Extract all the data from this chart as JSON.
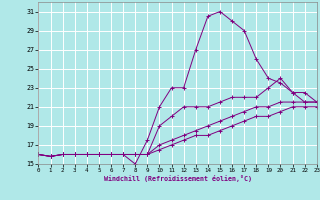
{
  "xlabel": "Windchill (Refroidissement éolien,°C)",
  "background_color": "#b0e8e8",
  "grid_color": "#ffffff",
  "line_color": "#800080",
  "xlim": [
    0,
    23
  ],
  "ylim": [
    15,
    32
  ],
  "yticks": [
    15,
    17,
    19,
    21,
    23,
    25,
    27,
    29,
    31
  ],
  "xticks": [
    0,
    1,
    2,
    3,
    4,
    5,
    6,
    7,
    8,
    9,
    10,
    11,
    12,
    13,
    14,
    15,
    16,
    17,
    18,
    19,
    20,
    21,
    22,
    23
  ],
  "lines": [
    {
      "x": [
        0,
        1,
        2,
        3,
        4,
        5,
        6,
        7,
        8,
        9,
        10,
        11,
        12,
        13,
        14,
        15,
        16,
        17,
        18,
        19,
        20,
        21,
        22,
        23
      ],
      "y": [
        16,
        15.8,
        16,
        16,
        16,
        16,
        16,
        16,
        15,
        17.5,
        21,
        23,
        23,
        27,
        30.5,
        31,
        30,
        29,
        26,
        24,
        23.5,
        22.5,
        21.5,
        21.5
      ]
    },
    {
      "x": [
        0,
        1,
        2,
        3,
        4,
        5,
        6,
        7,
        8,
        9,
        10,
        11,
        12,
        13,
        14,
        15,
        16,
        17,
        18,
        19,
        20,
        21,
        22,
        23
      ],
      "y": [
        16,
        15.8,
        16,
        16,
        16,
        16,
        16,
        16,
        16,
        16,
        19,
        20,
        21,
        21,
        21,
        21.5,
        22,
        22,
        22,
        23,
        24,
        22.5,
        22.5,
        21.5
      ]
    },
    {
      "x": [
        0,
        1,
        2,
        3,
        4,
        5,
        6,
        7,
        8,
        9,
        10,
        11,
        12,
        13,
        14,
        15,
        16,
        17,
        18,
        19,
        20,
        21,
        22,
        23
      ],
      "y": [
        16,
        15.8,
        16,
        16,
        16,
        16,
        16,
        16,
        16,
        16,
        17,
        17.5,
        18,
        18.5,
        19,
        19.5,
        20,
        20.5,
        21,
        21,
        21.5,
        21.5,
        21.5,
        21.5
      ]
    },
    {
      "x": [
        0,
        1,
        2,
        3,
        4,
        5,
        6,
        7,
        8,
        9,
        10,
        11,
        12,
        13,
        14,
        15,
        16,
        17,
        18,
        19,
        20,
        21,
        22,
        23
      ],
      "y": [
        16,
        15.8,
        16,
        16,
        16,
        16,
        16,
        16,
        16,
        16,
        16.5,
        17,
        17.5,
        18,
        18,
        18.5,
        19,
        19.5,
        20,
        20,
        20.5,
        21,
        21,
        21
      ]
    }
  ]
}
